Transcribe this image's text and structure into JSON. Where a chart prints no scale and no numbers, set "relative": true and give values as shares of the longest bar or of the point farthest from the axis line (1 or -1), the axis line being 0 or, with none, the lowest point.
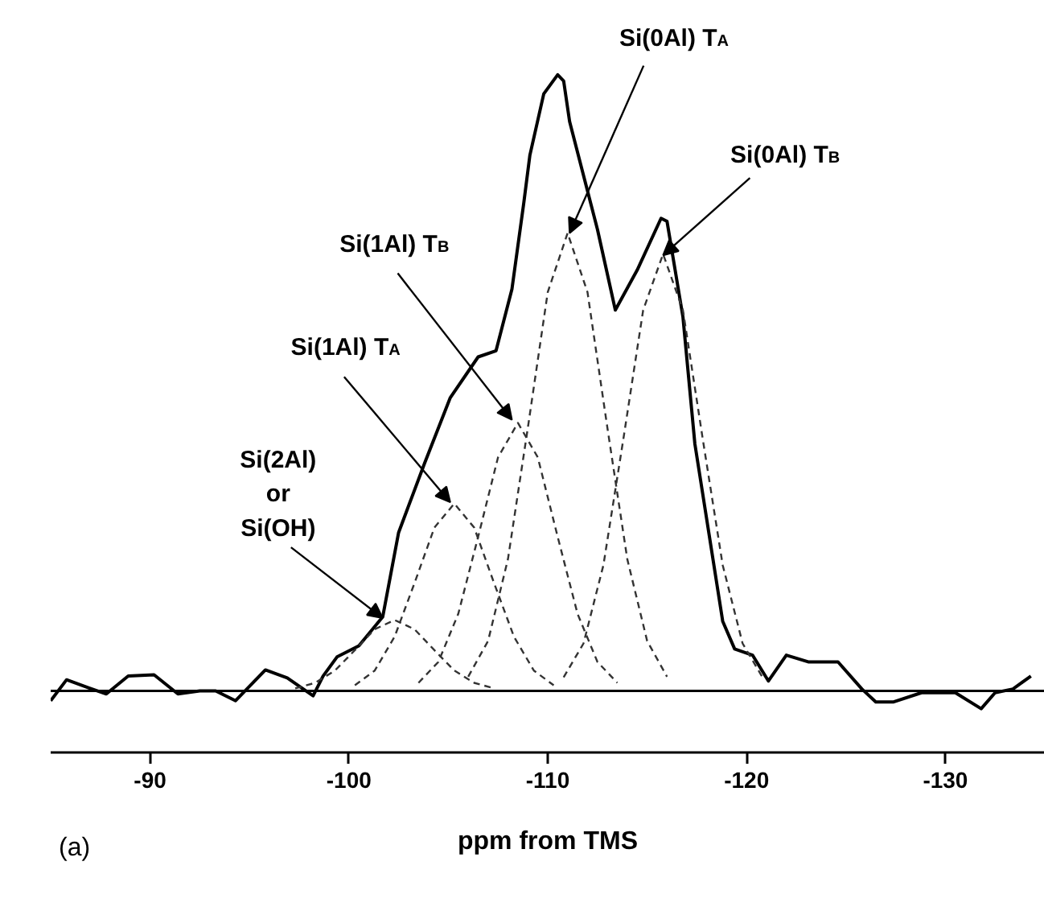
{
  "chart_data": {
    "type": "line",
    "relative": true,
    "xlabel": "ppm from TMS",
    "marker": "none",
    "xlim": [
      -85,
      -135
    ],
    "xticks": [
      -90,
      -100,
      -110,
      -120,
      -130
    ],
    "series": [
      {
        "color": "#000000",
        "line_style": "solid",
        "x": [
          -85.0,
          -85.8,
          -86.9,
          -87.8,
          -88.9,
          -90.2,
          -91.4,
          -92.5,
          -93.3,
          -94.3,
          -95.8,
          -96.9,
          -98.2,
          -98.7,
          -99.4,
          -100.5,
          -101.7,
          -102.5,
          -103.8,
          -105.1,
          -106.5,
          -107.4,
          -108.2,
          -108.8,
          -109.1,
          -109.8,
          -110.5,
          -110.8,
          -111.1,
          -112.5,
          -113.4,
          -114.5,
          -115.7,
          -116.0,
          -116.8,
          -117.4,
          -118.8,
          -119.4,
          -120.3,
          -121.1,
          -122.0,
          -123.1,
          -124.6,
          -125.8,
          -126.5,
          -127.4,
          -128.8,
          -130.5,
          -131.8,
          -132.5,
          -133.4,
          -134.3
        ],
        "values": [
          -0.016,
          0.018,
          0.005,
          -0.005,
          0.024,
          0.026,
          -0.005,
          0.0,
          0.0,
          -0.016,
          0.034,
          0.021,
          -0.008,
          0.024,
          0.055,
          0.073,
          0.12,
          0.257,
          0.369,
          0.476,
          0.542,
          0.552,
          0.652,
          0.793,
          0.869,
          0.969,
          1.0,
          0.99,
          0.924,
          0.749,
          0.618,
          0.683,
          0.767,
          0.762,
          0.607,
          0.401,
          0.113,
          0.068,
          0.058,
          0.016,
          0.058,
          0.047,
          0.047,
          0.003,
          -0.018,
          -0.018,
          -0.003,
          -0.003,
          -0.029,
          -0.003,
          0.003,
          0.024
        ]
      },
      {
        "color": "#333333",
        "line_style": "dashed",
        "x": [
          -97.3,
          -98.3,
          -99.3,
          -100.3,
          -101.3,
          -102.3,
          -103.3,
          -104.3,
          -105.3,
          -106.3,
          -107.3
        ],
        "values": [
          0.004,
          0.013,
          0.033,
          0.066,
          0.1,
          0.115,
          0.1,
          0.066,
          0.033,
          0.013,
          0.004
        ]
      },
      {
        "color": "#333333",
        "line_style": "dashed",
        "x": [
          -100.3,
          -101.3,
          -102.3,
          -103.3,
          -104.3,
          -105.3,
          -106.3,
          -107.3,
          -108.3,
          -109.3,
          -110.3
        ],
        "values": [
          0.009,
          0.033,
          0.088,
          0.175,
          0.265,
          0.304,
          0.265,
          0.175,
          0.088,
          0.033,
          0.009
        ]
      },
      {
        "color": "#333333",
        "line_style": "dashed",
        "x": [
          -103.5,
          -104.5,
          -105.5,
          -106.5,
          -107.5,
          -108.5,
          -109.5,
          -110.5,
          -111.5,
          -112.5,
          -113.5
        ],
        "values": [
          0.013,
          0.047,
          0.125,
          0.25,
          0.379,
          0.435,
          0.379,
          0.25,
          0.125,
          0.047,
          0.013
        ]
      },
      {
        "color": "#333333",
        "line_style": "dashed",
        "x": [
          -106.0,
          -107.0,
          -108.0,
          -109.0,
          -110.0,
          -111.0,
          -112.0,
          -113.0,
          -114.0,
          -115.0,
          -116.0
        ],
        "values": [
          0.023,
          0.081,
          0.214,
          0.427,
          0.647,
          0.743,
          0.647,
          0.427,
          0.214,
          0.081,
          0.023
        ]
      },
      {
        "color": "#333333",
        "line_style": "dashed",
        "x": [
          -110.8,
          -111.8,
          -112.8,
          -113.8,
          -114.8,
          -115.8,
          -116.8,
          -117.8,
          -118.8,
          -119.8,
          -120.8
        ],
        "values": [
          0.022,
          0.077,
          0.204,
          0.408,
          0.618,
          0.709,
          0.618,
          0.408,
          0.204,
          0.077,
          0.022
        ]
      }
    ],
    "ref_lines": [
      {
        "axis": "y",
        "value": 0,
        "color": "#000000"
      }
    ],
    "annotations": [
      {
        "text": "Si(2Al)\nor\nSi(OH)",
        "x": -101.7,
        "y": 0.118
      },
      {
        "text": "Si(1Al) T$_{A}$",
        "x": -105.1,
        "y": 0.306
      },
      {
        "text": "Si(1Al) T$_{B}$",
        "x": -108.2,
        "y": 0.44
      },
      {
        "text": "Si(0Al) T$_{A}$",
        "x": -111.1,
        "y": 0.743
      },
      {
        "text": "Si(0Al) T$_{B}$",
        "x": -115.8,
        "y": 0.707
      },
      "(a)"
    ]
  }
}
